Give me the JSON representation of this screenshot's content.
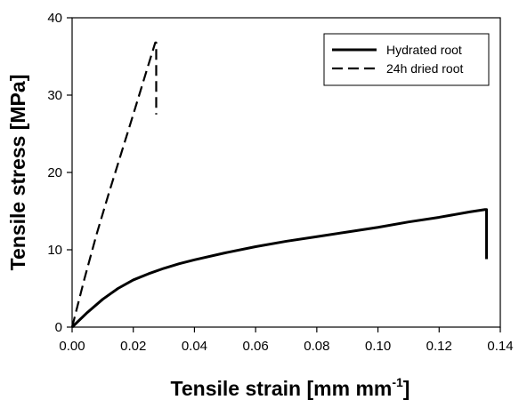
{
  "chart_data": {
    "type": "line",
    "xlabel": "Tensile strain [mm mm",
    "xlabel_superscript": "-1",
    "xlabel_suffix": "]",
    "ylabel": "Tensile stress [MPa]",
    "xlim": [
      0,
      0.14
    ],
    "ylim": [
      0,
      40
    ],
    "xticks": [
      0.0,
      0.02,
      0.04,
      0.06,
      0.08,
      0.1,
      0.12,
      0.14
    ],
    "xtick_labels": [
      "0.00",
      "0.02",
      "0.04",
      "0.06",
      "0.08",
      "0.10",
      "0.12",
      "0.14"
    ],
    "yticks": [
      0,
      10,
      20,
      30,
      40
    ],
    "ytick_labels": [
      "0",
      "10",
      "20",
      "30",
      "40"
    ],
    "grid": false,
    "legend_position": "top-right",
    "series": [
      {
        "name": "Hydrated root",
        "style": "solid",
        "color": "#000000",
        "x": [
          0.0,
          0.005,
          0.01,
          0.015,
          0.02,
          0.025,
          0.03,
          0.035,
          0.04,
          0.05,
          0.06,
          0.07,
          0.08,
          0.09,
          0.1,
          0.11,
          0.12,
          0.13,
          0.135,
          0.1355,
          0.1355
        ],
        "y": [
          0.0,
          1.9,
          3.6,
          5.0,
          6.1,
          6.9,
          7.6,
          8.2,
          8.7,
          9.6,
          10.4,
          11.1,
          11.7,
          12.3,
          12.9,
          13.6,
          14.2,
          14.9,
          15.2,
          15.2,
          8.8
        ]
      },
      {
        "name": "24h dried root",
        "style": "dashed",
        "color": "#000000",
        "x": [
          0.0,
          0.004,
          0.008,
          0.012,
          0.016,
          0.02,
          0.024,
          0.0272,
          0.0275,
          0.0275
        ],
        "y": [
          0.0,
          6.2,
          12.0,
          17.3,
          22.4,
          27.5,
          32.7,
          36.8,
          36.8,
          27.5
        ]
      }
    ]
  }
}
